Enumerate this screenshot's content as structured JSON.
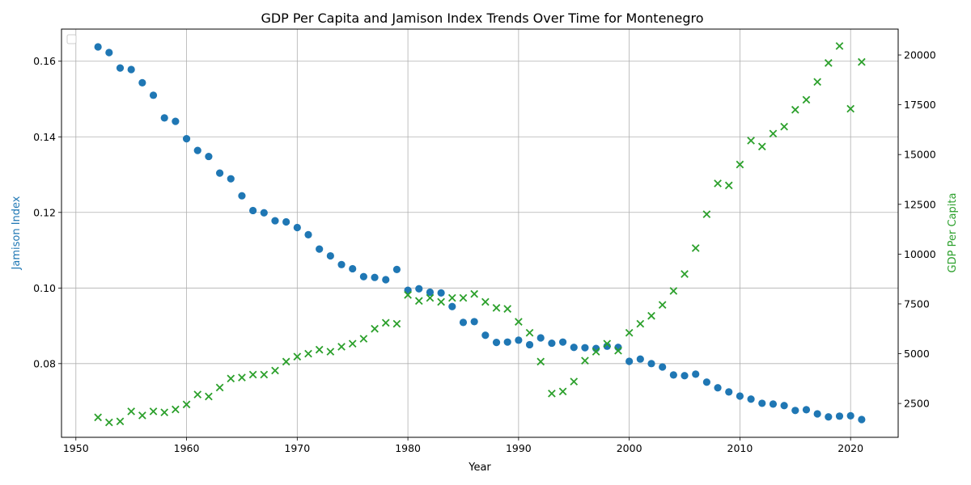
{
  "chart_data": {
    "type": "scatter",
    "title": "GDP Per Capita and Jamison Index Trends Over Time for Montenegro",
    "xlabel": "Year",
    "ylabel_left": "Jamison Index",
    "ylabel_right": "GDP Per Capita",
    "xlim": [
      1948.7,
      2024.3
    ],
    "ylim_left": [
      0.0605,
      0.1685
    ],
    "ylim_right": [
      800,
      21300
    ],
    "x_ticks": [
      1950,
      1960,
      1970,
      1980,
      1990,
      2000,
      2010,
      2020
    ],
    "y_ticks_left": [
      0.08,
      0.1,
      0.12,
      0.14,
      0.16
    ],
    "y_ticks_right": [
      2500,
      5000,
      7500,
      10000,
      12500,
      15000,
      17500,
      20000
    ],
    "grid": true,
    "legend": "top-left (empty)",
    "colors": {
      "jamison": "#1f77b4",
      "gdp": "#2ca02c",
      "left_axis_label": "#1f77b4",
      "right_axis_label": "#2ca02c",
      "grid": "#b0b0b0"
    },
    "x": [
      1952,
      1953,
      1954,
      1955,
      1956,
      1957,
      1958,
      1959,
      1960,
      1961,
      1962,
      1963,
      1964,
      1965,
      1966,
      1967,
      1968,
      1969,
      1970,
      1971,
      1972,
      1973,
      1974,
      1975,
      1976,
      1977,
      1978,
      1979,
      1980,
      1981,
      1982,
      1983,
      1984,
      1985,
      1986,
      1987,
      1988,
      1989,
      1990,
      1991,
      1992,
      1993,
      1994,
      1995,
      1996,
      1997,
      1998,
      1999,
      2000,
      2001,
      2002,
      2003,
      2004,
      2005,
      2006,
      2007,
      2008,
      2009,
      2010,
      2011,
      2012,
      2013,
      2014,
      2015,
      2016,
      2017,
      2018,
      2019,
      2020,
      2021
    ],
    "series": [
      {
        "axis": "left",
        "marker": "circle",
        "values": [
          0.1638,
          0.1623,
          0.1582,
          0.1578,
          0.1543,
          0.151,
          0.145,
          0.1441,
          0.1395,
          0.1364,
          0.1348,
          0.1304,
          0.1289,
          0.1244,
          0.1205,
          0.1199,
          0.1178,
          0.1175,
          0.116,
          0.1141,
          0.1103,
          0.1085,
          0.1062,
          0.1051,
          0.103,
          0.1028,
          0.1022,
          0.1049,
          0.0994,
          0.0998,
          0.0989,
          0.0987,
          0.0951,
          0.0909,
          0.0911,
          0.0875,
          0.0856,
          0.0857,
          0.0862,
          0.085,
          0.0868,
          0.0854,
          0.0857,
          0.0843,
          0.0842,
          0.084,
          0.0846,
          0.0843,
          0.0806,
          0.0812,
          0.08,
          0.0791,
          0.077,
          0.0768,
          0.0772,
          0.0751,
          0.0736,
          0.0725,
          0.0714,
          0.0706,
          0.0695,
          0.0693,
          0.0689,
          0.0676,
          0.0678,
          0.0667,
          0.0659,
          0.0661,
          0.0662,
          0.0652
        ]
      },
      {
        "axis": "right",
        "marker": "x",
        "values": [
          1800,
          1550,
          1600,
          2100,
          1900,
          2100,
          2050,
          2200,
          2450,
          2950,
          2850,
          3300,
          3750,
          3800,
          3950,
          3950,
          4150,
          4600,
          4850,
          5000,
          5200,
          5100,
          5350,
          5500,
          5750,
          6250,
          6550,
          6500,
          7950,
          7650,
          7800,
          7600,
          7800,
          7800,
          8000,
          7600,
          7300,
          7250,
          6600,
          6050,
          4600,
          3000,
          3100,
          3600,
          4650,
          5100,
          5500,
          5150,
          6050,
          6500,
          6900,
          7450,
          8150,
          9000,
          10300,
          12000,
          13550,
          13450,
          14500,
          15700,
          15400,
          16050,
          16400,
          17250,
          17750,
          18650,
          19600,
          20450,
          17300,
          19650
        ]
      }
    ]
  }
}
